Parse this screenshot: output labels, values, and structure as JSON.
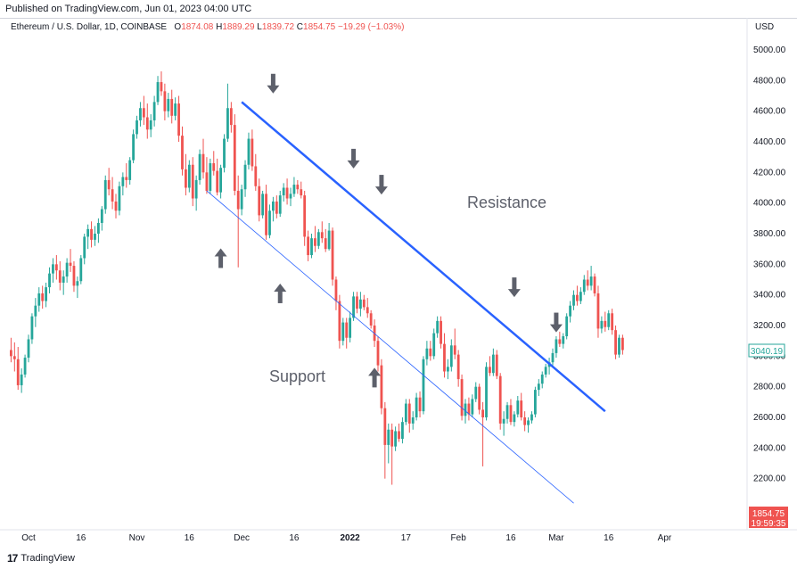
{
  "header": {
    "published": "Published on TradingView.com, Jun 01, 2023 04:00 UTC",
    "symbol": "Ethereum / U.S. Dollar, 1D, COINBASE",
    "open_label": "O",
    "open": "1874.08",
    "high_label": "H",
    "high": "1889.29",
    "low_label": "L",
    "low": "1839.72",
    "close_label": "C",
    "close": "1854.75",
    "change": "−19.29 (−1.03%)",
    "currency": "USD"
  },
  "footer": {
    "brand": "TradingView"
  },
  "price_badges": {
    "last_price": "3040.19",
    "current_price": "1854.75",
    "countdown": "19:59:35"
  },
  "colors": {
    "up": "#26a69a",
    "down": "#ef5350",
    "trend": "#2962ff",
    "arrow": "#5d606b"
  },
  "chart_data": {
    "type": "candlestick",
    "y_ticks": [
      "5000.00",
      "4800.00",
      "4600.00",
      "4400.00",
      "4200.00",
      "4000.00",
      "3800.00",
      "3600.00",
      "3400.00",
      "3200.00",
      "3000.00",
      "2800.00",
      "2600.00",
      "2400.00",
      "2200.00"
    ],
    "y_range": [
      2000,
      5000
    ],
    "x_ticks": [
      "Oct",
      "16",
      "Nov",
      "16",
      "Dec",
      "16",
      "2022",
      "17",
      "Feb",
      "16",
      "Mar",
      "16",
      "Apr"
    ],
    "x_tick_day": [
      0,
      15,
      31,
      46,
      61,
      76,
      92,
      108,
      123,
      138,
      151,
      166,
      182
    ],
    "annotations": {
      "resistance": "Resistance",
      "support": "Support"
    },
    "resistance_line": {
      "from": {
        "day": 61,
        "price": 4660
      },
      "to": {
        "day": 165,
        "price": 2640
      }
    },
    "support_line": {
      "from": {
        "day": 51,
        "price": 4080
      },
      "to": {
        "day": 156,
        "price": 2040
      }
    },
    "down_arrows": [
      {
        "day": 70,
        "price": 4780
      },
      {
        "day": 93,
        "price": 4290
      },
      {
        "day": 101,
        "price": 4120
      },
      {
        "day": 139,
        "price": 3450
      },
      {
        "day": 151,
        "price": 3220
      }
    ],
    "up_arrows": [
      {
        "day": 55,
        "price": 3640
      },
      {
        "day": 72,
        "price": 3410
      },
      {
        "day": 99,
        "price": 2860
      }
    ],
    "candles_start_day": -5,
    "candles": [
      [
        3040,
        3120,
        2960,
        3000
      ],
      [
        3000,
        3090,
        2900,
        2980
      ],
      [
        2980,
        3060,
        2780,
        2810
      ],
      [
        2810,
        2920,
        2760,
        2880
      ],
      [
        2880,
        3010,
        2860,
        2990
      ],
      [
        2990,
        3140,
        2960,
        3110
      ],
      [
        3110,
        3280,
        3080,
        3260
      ],
      [
        3260,
        3380,
        3190,
        3330
      ],
      [
        3330,
        3450,
        3290,
        3410
      ],
      [
        3410,
        3460,
        3310,
        3360
      ],
      [
        3360,
        3480,
        3320,
        3450
      ],
      [
        3450,
        3580,
        3410,
        3540
      ],
      [
        3540,
        3640,
        3480,
        3600
      ],
      [
        3600,
        3660,
        3500,
        3560
      ],
      [
        3560,
        3620,
        3430,
        3480
      ],
      [
        3480,
        3560,
        3400,
        3520
      ],
      [
        3520,
        3640,
        3480,
        3610
      ],
      [
        3610,
        3700,
        3550,
        3590
      ],
      [
        3590,
        3620,
        3420,
        3460
      ],
      [
        3460,
        3520,
        3380,
        3490
      ],
      [
        3490,
        3660,
        3470,
        3640
      ],
      [
        3640,
        3800,
        3600,
        3780
      ],
      [
        3780,
        3860,
        3700,
        3830
      ],
      [
        3830,
        3880,
        3710,
        3760
      ],
      [
        3760,
        3850,
        3720,
        3800
      ],
      [
        3800,
        3900,
        3740,
        3870
      ],
      [
        3870,
        3980,
        3820,
        3960
      ],
      [
        3960,
        4180,
        3930,
        4150
      ],
      [
        4150,
        4230,
        4050,
        4090
      ],
      [
        4090,
        4170,
        3960,
        4010
      ],
      [
        4010,
        4060,
        3900,
        3950
      ],
      [
        3950,
        4140,
        3920,
        4110
      ],
      [
        4110,
        4200,
        4050,
        4170
      ],
      [
        4170,
        4260,
        4100,
        4150
      ],
      [
        4150,
        4300,
        4120,
        4280
      ],
      [
        4280,
        4480,
        4260,
        4450
      ],
      [
        4450,
        4570,
        4420,
        4540
      ],
      [
        4540,
        4660,
        4500,
        4620
      ],
      [
        4620,
        4700,
        4510,
        4560
      ],
      [
        4560,
        4650,
        4420,
        4480
      ],
      [
        4480,
        4580,
        4430,
        4540
      ],
      [
        4540,
        4700,
        4500,
        4660
      ],
      [
        4660,
        4830,
        4640,
        4790
      ],
      [
        4790,
        4860,
        4700,
        4730
      ],
      [
        4730,
        4780,
        4540,
        4600
      ],
      [
        4600,
        4720,
        4560,
        4680
      ],
      [
        4680,
        4740,
        4520,
        4570
      ],
      [
        4570,
        4690,
        4540,
        4650
      ],
      [
        4650,
        4700,
        4400,
        4440
      ],
      [
        4440,
        4500,
        4180,
        4220
      ],
      [
        4220,
        4320,
        4050,
        4100
      ],
      [
        4100,
        4280,
        4070,
        4250
      ],
      [
        4250,
        4300,
        3980,
        4030
      ],
      [
        4030,
        4180,
        3950,
        4150
      ],
      [
        4150,
        4350,
        4120,
        4320
      ],
      [
        4320,
        4420,
        4160,
        4200
      ],
      [
        4200,
        4300,
        4060,
        4080
      ],
      [
        4080,
        4290,
        4060,
        4260
      ],
      [
        4260,
        4340,
        4180,
        4210
      ],
      [
        4210,
        4290,
        4050,
        4070
      ],
      [
        4070,
        4250,
        4030,
        4230
      ],
      [
        4230,
        4450,
        4200,
        4420
      ],
      [
        4420,
        4780,
        4400,
        4620
      ],
      [
        4620,
        4660,
        4460,
        4510
      ],
      [
        4510,
        4580,
        4050,
        4080
      ],
      [
        4080,
        4180,
        3580,
        3960
      ],
      [
        3960,
        4120,
        3920,
        4090
      ],
      [
        4090,
        4280,
        4040,
        4250
      ],
      [
        4250,
        4460,
        4220,
        4420
      ],
      [
        4420,
        4480,
        4210,
        4240
      ],
      [
        4240,
        4320,
        4080,
        4110
      ],
      [
        4110,
        4160,
        3880,
        3920
      ],
      [
        3920,
        4080,
        3900,
        4060
      ],
      [
        4060,
        4120,
        3760,
        3790
      ],
      [
        3790,
        3990,
        3770,
        3950
      ],
      [
        3950,
        4040,
        3880,
        4010
      ],
      [
        4010,
        4050,
        3900,
        3930
      ],
      [
        3930,
        4080,
        3910,
        4050
      ],
      [
        4050,
        4130,
        4010,
        4100
      ],
      [
        4100,
        4160,
        3990,
        4030
      ],
      [
        4030,
        4100,
        3980,
        4060
      ],
      [
        4060,
        4170,
        4040,
        4120
      ],
      [
        4120,
        4150,
        4060,
        4090
      ],
      [
        4090,
        4140,
        4030,
        4050
      ],
      [
        4050,
        4080,
        3720,
        3780
      ],
      [
        3780,
        3820,
        3620,
        3660
      ],
      [
        3660,
        3800,
        3640,
        3770
      ],
      [
        3770,
        3850,
        3680,
        3720
      ],
      [
        3720,
        3830,
        3700,
        3810
      ],
      [
        3810,
        3880,
        3740,
        3770
      ],
      [
        3770,
        3830,
        3680,
        3700
      ],
      [
        3700,
        3870,
        3690,
        3820
      ],
      [
        3820,
        3840,
        3460,
        3500
      ],
      [
        3500,
        3520,
        3300,
        3360
      ],
      [
        3360,
        3400,
        3050,
        3100
      ],
      [
        3100,
        3250,
        3070,
        3220
      ],
      [
        3220,
        3250,
        3050,
        3120
      ],
      [
        3120,
        3290,
        3090,
        3250
      ],
      [
        3250,
        3420,
        3230,
        3390
      ],
      [
        3390,
        3420,
        3280,
        3310
      ],
      [
        3310,
        3420,
        3260,
        3370
      ],
      [
        3370,
        3400,
        3300,
        3320
      ],
      [
        3320,
        3380,
        3250,
        3280
      ],
      [
        3280,
        3300,
        3180,
        3200
      ],
      [
        3200,
        3240,
        3060,
        3100
      ],
      [
        3100,
        3130,
        2900,
        2940
      ],
      [
        2940,
        2980,
        2620,
        2660
      ],
      [
        2660,
        2700,
        2200,
        2420
      ],
      [
        2420,
        2560,
        2300,
        2520
      ],
      [
        2520,
        2560,
        2160,
        2410
      ],
      [
        2410,
        2540,
        2380,
        2510
      ],
      [
        2510,
        2560,
        2440,
        2460
      ],
      [
        2460,
        2600,
        2430,
        2570
      ],
      [
        2570,
        2720,
        2550,
        2690
      ],
      [
        2690,
        2720,
        2500,
        2560
      ],
      [
        2560,
        2640,
        2520,
        2600
      ],
      [
        2600,
        2760,
        2580,
        2730
      ],
      [
        2730,
        2770,
        2600,
        2640
      ],
      [
        2640,
        3000,
        2620,
        2980
      ],
      [
        2980,
        3100,
        2940,
        3050
      ],
      [
        3050,
        3100,
        2970,
        3000
      ],
      [
        3000,
        3180,
        2980,
        3150
      ],
      [
        3150,
        3260,
        3120,
        3230
      ],
      [
        3230,
        3260,
        3050,
        3080
      ],
      [
        3080,
        3150,
        2860,
        2900
      ],
      [
        2900,
        2980,
        2850,
        2930
      ],
      [
        2930,
        3110,
        2900,
        3070
      ],
      [
        3070,
        3180,
        2980,
        3010
      ],
      [
        3010,
        3040,
        2800,
        2850
      ],
      [
        2850,
        2880,
        2580,
        2610
      ],
      [
        2610,
        2720,
        2560,
        2690
      ],
      [
        2690,
        2730,
        2580,
        2620
      ],
      [
        2620,
        2750,
        2600,
        2720
      ],
      [
        2720,
        2830,
        2700,
        2800
      ],
      [
        2800,
        2820,
        2620,
        2650
      ],
      [
        2650,
        2700,
        2280,
        2600
      ],
      [
        2600,
        2960,
        2580,
        2930
      ],
      [
        2930,
        3000,
        2870,
        2890
      ],
      [
        2890,
        3050,
        2870,
        3010
      ],
      [
        3010,
        3040,
        2850,
        2870
      ],
      [
        2870,
        2890,
        2520,
        2560
      ],
      [
        2560,
        2640,
        2480,
        2590
      ],
      [
        2590,
        2700,
        2560,
        2680
      ],
      [
        2680,
        2720,
        2550,
        2570
      ],
      [
        2570,
        2640,
        2540,
        2620
      ],
      [
        2620,
        2740,
        2600,
        2710
      ],
      [
        2710,
        2760,
        2580,
        2600
      ],
      [
        2600,
        2640,
        2510,
        2550
      ],
      [
        2550,
        2600,
        2500,
        2580
      ],
      [
        2580,
        2640,
        2560,
        2620
      ],
      [
        2620,
        2800,
        2600,
        2780
      ],
      [
        2780,
        2850,
        2740,
        2820
      ],
      [
        2820,
        2900,
        2790,
        2880
      ],
      [
        2880,
        2950,
        2860,
        2930
      ],
      [
        2930,
        2990,
        2880,
        2960
      ],
      [
        2960,
        3050,
        2940,
        3020
      ],
      [
        3020,
        3130,
        2990,
        3110
      ],
      [
        3110,
        3160,
        3060,
        3080
      ],
      [
        3080,
        3150,
        3050,
        3130
      ],
      [
        3130,
        3280,
        3110,
        3260
      ],
      [
        3260,
        3360,
        3220,
        3330
      ],
      [
        3330,
        3430,
        3300,
        3400
      ],
      [
        3400,
        3460,
        3330,
        3360
      ],
      [
        3360,
        3450,
        3340,
        3420
      ],
      [
        3420,
        3530,
        3400,
        3500
      ],
      [
        3500,
        3560,
        3430,
        3460
      ],
      [
        3460,
        3590,
        3430,
        3520
      ],
      [
        3520,
        3540,
        3390,
        3410
      ],
      [
        3410,
        3460,
        3120,
        3180
      ],
      [
        3180,
        3260,
        3150,
        3230
      ],
      [
        3230,
        3290,
        3160,
        3190
      ],
      [
        3190,
        3300,
        3170,
        3280
      ],
      [
        3280,
        3310,
        3140,
        3170
      ],
      [
        3170,
        3200,
        2980,
        3010
      ],
      [
        3010,
        3140,
        2990,
        3120
      ],
      [
        3120,
        3140,
        3010,
        3040
      ]
    ]
  }
}
